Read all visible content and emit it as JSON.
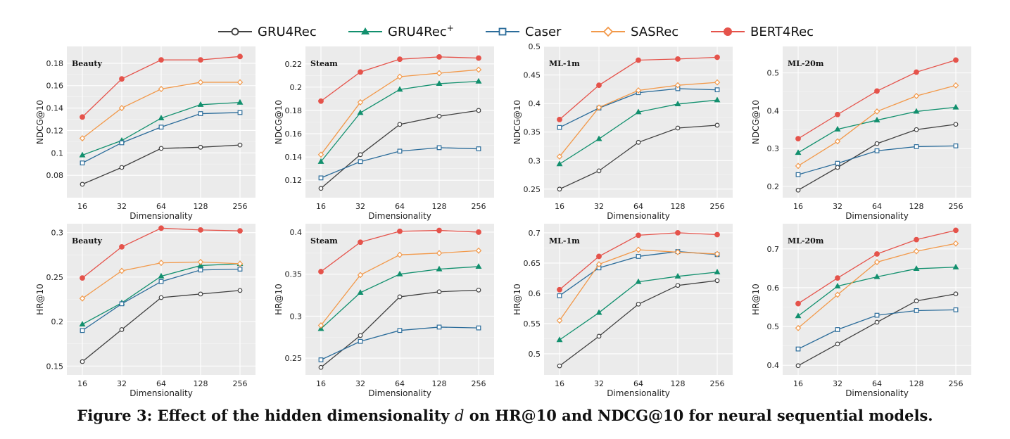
{
  "legend": {
    "items": [
      {
        "name": "GRU4Rec",
        "sup": "",
        "color": "#404040",
        "marker": "circle-open"
      },
      {
        "name": "GRU4Rec",
        "sup": "+",
        "color": "#12906e",
        "marker": "triangle"
      },
      {
        "name": "Caser",
        "sup": "",
        "color": "#2b6c9a",
        "marker": "square-open"
      },
      {
        "name": "SASRec",
        "sup": "",
        "color": "#f2994a",
        "marker": "diamond-open"
      },
      {
        "name": "BERT4Rec",
        "sup": "",
        "color": "#e5534b",
        "marker": "circle-filled"
      }
    ]
  },
  "caption": {
    "prefix": "Figure 3: Effect of the hidden dimensionality ",
    "symbol": "d",
    "suffix": " on HR@10 and NDCG@10 for neural sequential models."
  },
  "chart_data": [
    {
      "type": "line",
      "title": "Beauty",
      "xlabel": "Dimensionality",
      "ylabel": "NDCG@10",
      "categories": [
        "16",
        "32",
        "64",
        "128",
        "256"
      ],
      "ylim": [
        0.06,
        0.195
      ],
      "yticks": [
        0.08,
        0.1,
        0.12,
        0.14,
        0.16,
        0.18
      ],
      "ytick_labels": [
        "0.08",
        "0.1",
        "0.12",
        "0.14",
        "0.16",
        "0.18"
      ],
      "series": [
        {
          "name": "GRU4Rec",
          "values": [
            0.072,
            0.087,
            0.104,
            0.105,
            0.107
          ]
        },
        {
          "name": "GRU4Rec+",
          "values": [
            0.098,
            0.111,
            0.131,
            0.143,
            0.145
          ]
        },
        {
          "name": "Caser",
          "values": [
            0.091,
            0.109,
            0.123,
            0.135,
            0.136
          ]
        },
        {
          "name": "SASRec",
          "values": [
            0.113,
            0.14,
            0.157,
            0.163,
            0.163
          ]
        },
        {
          "name": "BERT4Rec",
          "values": [
            0.132,
            0.166,
            0.183,
            0.183,
            0.186
          ]
        }
      ]
    },
    {
      "type": "line",
      "title": "Steam",
      "xlabel": "Dimensionality",
      "ylabel": "NDCG@10",
      "categories": [
        "16",
        "32",
        "64",
        "128",
        "256"
      ],
      "ylim": [
        0.105,
        0.235
      ],
      "yticks": [
        0.12,
        0.14,
        0.16,
        0.18,
        0.2,
        0.22
      ],
      "ytick_labels": [
        "0.12",
        "0.14",
        "0.16",
        "0.18",
        "0.2",
        "0.22"
      ],
      "series": [
        {
          "name": "GRU4Rec",
          "values": [
            0.113,
            0.142,
            0.168,
            0.175,
            0.18
          ]
        },
        {
          "name": "GRU4Rec+",
          "values": [
            0.136,
            0.178,
            0.198,
            0.203,
            0.205
          ]
        },
        {
          "name": "Caser",
          "values": [
            0.122,
            0.136,
            0.145,
            0.148,
            0.147
          ]
        },
        {
          "name": "SASRec",
          "values": [
            0.142,
            0.187,
            0.209,
            0.212,
            0.215
          ]
        },
        {
          "name": "BERT4Rec",
          "values": [
            0.188,
            0.213,
            0.224,
            0.226,
            0.225
          ]
        }
      ]
    },
    {
      "type": "line",
      "title": "ML-1m",
      "xlabel": "Dimensionality",
      "ylabel": "NDCG@10",
      "categories": [
        "16",
        "32",
        "64",
        "128",
        "256"
      ],
      "ylim": [
        0.235,
        0.5
      ],
      "yticks": [
        0.25,
        0.3,
        0.35,
        0.4,
        0.45,
        0.5
      ],
      "ytick_labels": [
        "0.25",
        "0.3",
        "0.35",
        "0.4",
        "0.45",
        "0.5"
      ],
      "series": [
        {
          "name": "GRU4Rec",
          "values": [
            0.25,
            0.282,
            0.332,
            0.357,
            0.362
          ]
        },
        {
          "name": "GRU4Rec+",
          "values": [
            0.294,
            0.338,
            0.385,
            0.399,
            0.406
          ]
        },
        {
          "name": "Caser",
          "values": [
            0.358,
            0.392,
            0.419,
            0.426,
            0.424
          ]
        },
        {
          "name": "SASRec",
          "values": [
            0.307,
            0.393,
            0.423,
            0.432,
            0.437
          ]
        },
        {
          "name": "BERT4Rec",
          "values": [
            0.372,
            0.432,
            0.476,
            0.478,
            0.481
          ]
        }
      ]
    },
    {
      "type": "line",
      "title": "ML-20m",
      "xlabel": "Dimensionality",
      "ylabel": "NDCG@10",
      "categories": [
        "16",
        "32",
        "64",
        "128",
        "256"
      ],
      "ylim": [
        0.17,
        0.57
      ],
      "yticks": [
        0.2,
        0.3,
        0.4,
        0.5
      ],
      "ytick_labels": [
        "0.2",
        "0.3",
        "0.4",
        "0.5"
      ],
      "series": [
        {
          "name": "GRU4Rec",
          "values": [
            0.19,
            0.25,
            0.313,
            0.35,
            0.364
          ]
        },
        {
          "name": "GRU4Rec+",
          "values": [
            0.289,
            0.351,
            0.375,
            0.398,
            0.409
          ]
        },
        {
          "name": "Caser",
          "values": [
            0.231,
            0.261,
            0.294,
            0.305,
            0.307
          ]
        },
        {
          "name": "SASRec",
          "values": [
            0.254,
            0.319,
            0.398,
            0.439,
            0.467
          ]
        },
        {
          "name": "BERT4Rec",
          "values": [
            0.326,
            0.39,
            0.452,
            0.502,
            0.534
          ]
        }
      ]
    },
    {
      "type": "line",
      "title": "Beauty",
      "xlabel": "Dimensionality",
      "ylabel": "HR@10",
      "categories": [
        "16",
        "32",
        "64",
        "128",
        "256"
      ],
      "ylim": [
        0.14,
        0.31
      ],
      "yticks": [
        0.15,
        0.2,
        0.25,
        0.3
      ],
      "ytick_labels": [
        "0.15",
        "0.2",
        "0.25",
        "0.3"
      ],
      "series": [
        {
          "name": "GRU4Rec",
          "values": [
            0.155,
            0.191,
            0.227,
            0.231,
            0.235
          ]
        },
        {
          "name": "GRU4Rec+",
          "values": [
            0.197,
            0.221,
            0.251,
            0.263,
            0.265
          ]
        },
        {
          "name": "Caser",
          "values": [
            0.19,
            0.22,
            0.245,
            0.258,
            0.259
          ]
        },
        {
          "name": "SASRec",
          "values": [
            0.226,
            0.257,
            0.266,
            0.267,
            0.265
          ]
        },
        {
          "name": "BERT4Rec",
          "values": [
            0.249,
            0.284,
            0.305,
            0.303,
            0.302
          ]
        }
      ]
    },
    {
      "type": "line",
      "title": "Steam",
      "xlabel": "Dimensionality",
      "ylabel": "HR@10",
      "categories": [
        "16",
        "32",
        "64",
        "128",
        "256"
      ],
      "ylim": [
        0.23,
        0.41
      ],
      "yticks": [
        0.25,
        0.3,
        0.35,
        0.4
      ],
      "ytick_labels": [
        "0.25",
        "0.3",
        "0.35",
        "0.4"
      ],
      "series": [
        {
          "name": "GRU4Rec",
          "values": [
            0.239,
            0.277,
            0.323,
            0.329,
            0.331
          ]
        },
        {
          "name": "GRU4Rec+",
          "values": [
            0.285,
            0.328,
            0.35,
            0.356,
            0.359
          ]
        },
        {
          "name": "Caser",
          "values": [
            0.248,
            0.27,
            0.283,
            0.287,
            0.286
          ]
        },
        {
          "name": "SASRec",
          "values": [
            0.289,
            0.349,
            0.373,
            0.375,
            0.378
          ]
        },
        {
          "name": "BERT4Rec",
          "values": [
            0.353,
            0.388,
            0.401,
            0.402,
            0.4
          ]
        }
      ]
    },
    {
      "type": "line",
      "title": "ML-1m",
      "xlabel": "Dimensionality",
      "ylabel": "HR@10",
      "categories": [
        "16",
        "32",
        "64",
        "128",
        "256"
      ],
      "ylim": [
        0.465,
        0.715
      ],
      "yticks": [
        0.5,
        0.55,
        0.6,
        0.65,
        0.7
      ],
      "ytick_labels": [
        "0.5",
        "0.55",
        "0.6",
        "0.65",
        "0.7"
      ],
      "series": [
        {
          "name": "GRU4Rec",
          "values": [
            0.48,
            0.529,
            0.582,
            0.613,
            0.621
          ]
        },
        {
          "name": "GRU4Rec+",
          "values": [
            0.523,
            0.568,
            0.619,
            0.628,
            0.635
          ]
        },
        {
          "name": "Caser",
          "values": [
            0.596,
            0.642,
            0.661,
            0.669,
            0.664
          ]
        },
        {
          "name": "SASRec",
          "values": [
            0.555,
            0.648,
            0.672,
            0.668,
            0.665
          ]
        },
        {
          "name": "BERT4Rec",
          "values": [
            0.606,
            0.661,
            0.696,
            0.7,
            0.697
          ]
        }
      ]
    },
    {
      "type": "line",
      "title": "ML-20m",
      "xlabel": "Dimensionality",
      "ylabel": "HR@10",
      "categories": [
        "16",
        "32",
        "64",
        "128",
        "256"
      ],
      "ylim": [
        0.375,
        0.765
      ],
      "yticks": [
        0.4,
        0.5,
        0.6,
        0.7
      ],
      "ytick_labels": [
        "0.4",
        "0.5",
        "0.6",
        "0.7"
      ],
      "series": [
        {
          "name": "GRU4Rec",
          "values": [
            0.399,
            0.455,
            0.511,
            0.566,
            0.584
          ]
        },
        {
          "name": "GRU4Rec+",
          "values": [
            0.527,
            0.604,
            0.628,
            0.649,
            0.653
          ]
        },
        {
          "name": "Caser",
          "values": [
            0.442,
            0.492,
            0.529,
            0.541,
            0.543
          ]
        },
        {
          "name": "SASRec",
          "values": [
            0.496,
            0.582,
            0.666,
            0.694,
            0.714
          ]
        },
        {
          "name": "BERT4Rec",
          "values": [
            0.559,
            0.625,
            0.687,
            0.724,
            0.748
          ]
        }
      ]
    }
  ]
}
